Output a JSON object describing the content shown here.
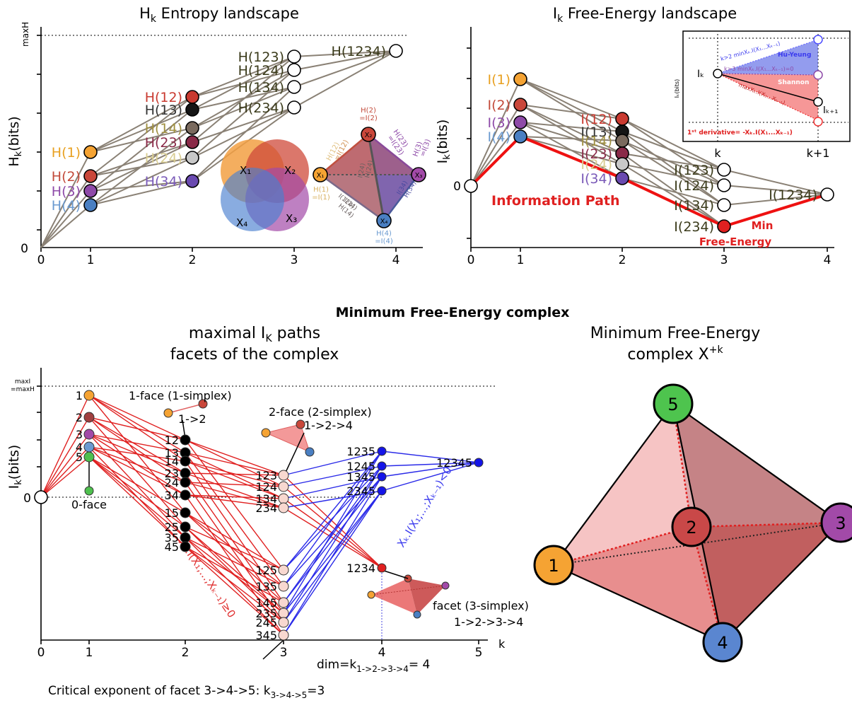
{
  "main_title": "Minimum Free-Energy complex",
  "panelA": {
    "title_main": "H",
    "title_sub": "k",
    "title_rest": " Entropy landscape",
    "ylabel_main": "H",
    "ylabel_sub": "k",
    "ylabel_rest": "(bits)",
    "ymax_label": "maxH",
    "y0_label": "0",
    "xticks": [
      "0",
      "1",
      "2",
      "3",
      "4"
    ],
    "nodes": [
      {
        "label": "H(1)",
        "k": 1,
        "color": "#f5a333",
        "lc": "#e8a020"
      },
      {
        "label": "H(2)",
        "k": 1,
        "color": "#c9473a",
        "lc": "#c24a3a"
      },
      {
        "label": "H(3)",
        "k": 1,
        "color": "#8e4aa8",
        "lc": "#8e4aa8"
      },
      {
        "label": "H(4)",
        "k": 1,
        "color": "#4a7fc2",
        "lc": "#6a9ad0"
      },
      {
        "label": "H(12)",
        "k": 2,
        "color": "#c93a30",
        "lc": "#c93a30"
      },
      {
        "label": "H(13)",
        "k": 2,
        "color": "#151515",
        "lc": "#333333"
      },
      {
        "label": "H(14)",
        "k": 2,
        "color": "#7a6a5e",
        "lc": "#a09040"
      },
      {
        "label": "H(23)",
        "k": 2,
        "color": "#8a2a48",
        "lc": "#8a2a48"
      },
      {
        "label": "H(24)",
        "k": 2,
        "color": "#c8c8c8",
        "lc": "#d8cc90"
      },
      {
        "label": "H(34)",
        "k": 2,
        "color": "#6a4ab0",
        "lc": "#7a5ab8"
      },
      {
        "label": "H(123)",
        "k": 3,
        "color": "#ffffff",
        "lc": "#3a3a1a"
      },
      {
        "label": "H(124)",
        "k": 3,
        "color": "#ffffff",
        "lc": "#3a3a1a"
      },
      {
        "label": "H(134)",
        "k": 3,
        "color": "#ffffff",
        "lc": "#3a3a1a"
      },
      {
        "label": "H(234)",
        "k": 3,
        "color": "#ffffff",
        "lc": "#3a3a1a"
      },
      {
        "label": "H(1234)",
        "k": 4,
        "color": "#ffffff",
        "lc": "#3a3a1a"
      }
    ],
    "venn": [
      "X₁",
      "X₂",
      "X₃",
      "X₄"
    ],
    "tetra_small": {
      "vertices": [
        "X₁",
        "X₂",
        "X₃",
        "X₄"
      ],
      "labels": [
        "H(2)",
        "=I(2)",
        "H(12)",
        "=I(12)",
        "H(23)",
        "=I(23)",
        "H(3)",
        "=I(3)",
        "H(1)",
        "=I(1)",
        "H(4)",
        "=I(4)",
        "I(24)",
        "H(24)",
        "I(124)",
        "I(14)",
        "H(14)",
        "I(34)",
        "H(34)"
      ]
    }
  },
  "panelB": {
    "title_main": "I",
    "title_sub": "k",
    "title_rest": " Free-Energy landscape",
    "ylabel_main": "I",
    "ylabel_sub": "k",
    "ylabel_rest": "(bits)",
    "y0_label": "0",
    "xticks": [
      "0",
      "1",
      "2",
      "3",
      "4"
    ],
    "nodes": [
      {
        "label": "I(1)",
        "k": 1,
        "color": "#f5a333",
        "lc": "#e8a020"
      },
      {
        "label": "I(2)",
        "k": 1,
        "color": "#c9473a",
        "lc": "#c24a3a"
      },
      {
        "label": "I(3)",
        "k": 1,
        "color": "#8e4aa8",
        "lc": "#8e4aa8"
      },
      {
        "label": "I(4)",
        "k": 1,
        "color": "#4a7fc2",
        "lc": "#6a9ad0"
      },
      {
        "label": "I(12)",
        "k": 2,
        "color": "#c93a30",
        "lc": "#c93a30"
      },
      {
        "label": "I(13)",
        "k": 2,
        "color": "#151515",
        "lc": "#333333"
      },
      {
        "label": "I(14)",
        "k": 2,
        "color": "#7a6a5e",
        "lc": "#a09040"
      },
      {
        "label": "I(23)",
        "k": 2,
        "color": "#8a2a48",
        "lc": "#8a2a48"
      },
      {
        "label": "I(24)",
        "k": 2,
        "color": "#c8c8c8",
        "lc": "#d8cc90"
      },
      {
        "label": "I(34)",
        "k": 2,
        "color": "#6a4ab0",
        "lc": "#7a5ab8"
      },
      {
        "label": "I(123)",
        "k": 3,
        "color": "#ffffff",
        "lc": "#3a3a1a"
      },
      {
        "label": "I(124)",
        "k": 3,
        "color": "#ffffff",
        "lc": "#3a3a1a"
      },
      {
        "label": "I(134)",
        "k": 3,
        "color": "#ffffff",
        "lc": "#3a3a1a"
      },
      {
        "label": "I(234)",
        "k": 3,
        "color": "#e02020",
        "lc": "#3a3a1a"
      },
      {
        "label": "I(1234)",
        "k": 4,
        "color": "#ffffff",
        "lc": "#3a3a1a"
      }
    ],
    "path_label": "Information Path",
    "min_label_1": "Min",
    "min_label_2": "Free-Energy",
    "inset": {
      "ylabel": "Iₖ(bits)",
      "ik": "Iₖ",
      "ik1": "Iₖ₊₁",
      "k": "k",
      "k1": "k+1",
      "hu_yeung": "Hu-Yeung",
      "shannon": "Shannon",
      "upper": "k>2 minXₖ.I(X₁...Xₖ₋₁)",
      "mid": "k>3 minXₖ.I(X₁...Xₖ₋₁)=0",
      "lower": "maxXₖ.I(X₁...Xₖ₋₁)",
      "deriv": "1ˢᵗ derivative= -Xₖ.I(X₁...Xₖ₋₁)"
    }
  },
  "panelC": {
    "title1": "maximal I",
    "title1_sub": "K",
    "title1_rest": " paths",
    "title2": "facets of the complex",
    "ylabel_main": "I",
    "ylabel_sub": "k",
    "ylabel_rest": "(bits)",
    "ymax_1": "maxI",
    "ymax_2": "=maxH",
    "y0_label": "0",
    "xticks": [
      "0",
      "1",
      "2",
      "3",
      "4",
      "5"
    ],
    "k_label": "k",
    "k1_labels": [
      "1",
      "2",
      "3",
      "4",
      "5"
    ],
    "k2_labels": [
      "12",
      "13",
      "14",
      "23",
      "24",
      "34",
      "15",
      "25",
      "35",
      "45"
    ],
    "k3_labels": [
      "123",
      "124",
      "134",
      "234",
      "125",
      "135",
      "145",
      "235",
      "245",
      "345"
    ],
    "k4_labels": [
      "1235",
      "1245",
      "1345",
      "2345",
      "1234"
    ],
    "k5_labels": [
      "12345"
    ],
    "face0": "0-face",
    "face1": "1-face (1-simplex)",
    "face1_path": "1->2",
    "face2": "2-face (2-simplex)",
    "face2_path": "1->2->4",
    "facet": "facet (3-simplex)",
    "facet_path": "1->2->3->4",
    "red_axis": "Xₖ.I(X₁;...;Xₖ₋₁)≥0",
    "blue_axis": "Xₖ.I(X₁;...;Xₖ₋₁)<0",
    "dim_text": "dim=k",
    "dim_sub": "1->2->3->4",
    "dim_rest": "= 4",
    "critical": "Critical exponent of facet 3->4->5: k",
    "critical_sub": "3->4->5",
    "critical_rest": "=3"
  },
  "panelD": {
    "title1": "Minimum Free-Energy",
    "title2": "complex X",
    "title2_sup": "+k",
    "vertices": [
      "1",
      "2",
      "3",
      "4",
      "5"
    ]
  }
}
